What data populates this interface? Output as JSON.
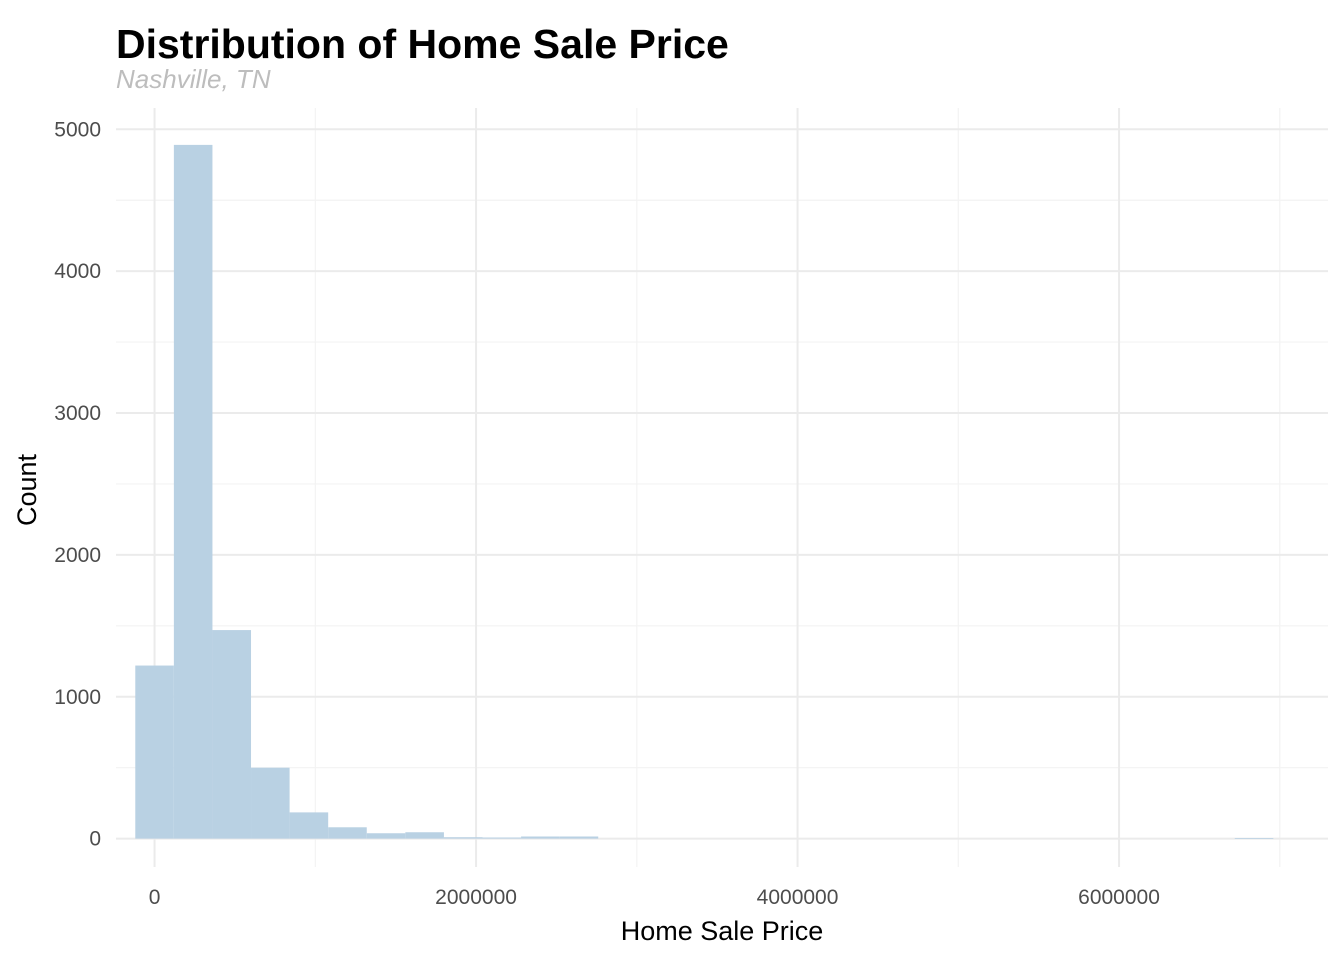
{
  "chart_data": {
    "type": "bar",
    "title": "Distribution of Home Sale Price",
    "subtitle": "Nashville, TN",
    "xlabel": "Home Sale Price",
    "ylabel": "Count",
    "xlim": [
      -240000,
      7300000
    ],
    "ylim": [
      -200,
      5150
    ],
    "x_ticks": [
      0,
      2000000,
      4000000,
      6000000
    ],
    "x_tick_labels": [
      "0",
      "2000000",
      "4000000",
      "6000000"
    ],
    "y_ticks": [
      0,
      1000,
      2000,
      3000,
      4000,
      5000
    ],
    "y_tick_labels": [
      "0",
      "1000",
      "2000",
      "3000",
      "4000",
      "5000"
    ],
    "grid": true,
    "bar_color": "#b9d1e3",
    "bins": [
      {
        "start": -120000,
        "end": 120000,
        "count": 1220
      },
      {
        "start": 120000,
        "end": 360000,
        "count": 4890
      },
      {
        "start": 360000,
        "end": 600000,
        "count": 1470
      },
      {
        "start": 600000,
        "end": 840000,
        "count": 500
      },
      {
        "start": 840000,
        "end": 1080000,
        "count": 185
      },
      {
        "start": 1080000,
        "end": 1320000,
        "count": 80
      },
      {
        "start": 1320000,
        "end": 1560000,
        "count": 38
      },
      {
        "start": 1560000,
        "end": 1800000,
        "count": 45
      },
      {
        "start": 1800000,
        "end": 2040000,
        "count": 10
      },
      {
        "start": 2040000,
        "end": 2280000,
        "count": 8
      },
      {
        "start": 2280000,
        "end": 2520000,
        "count": 15
      },
      {
        "start": 2520000,
        "end": 2760000,
        "count": 15
      },
      {
        "start": 6720000,
        "end": 6960000,
        "count": 4
      }
    ]
  }
}
